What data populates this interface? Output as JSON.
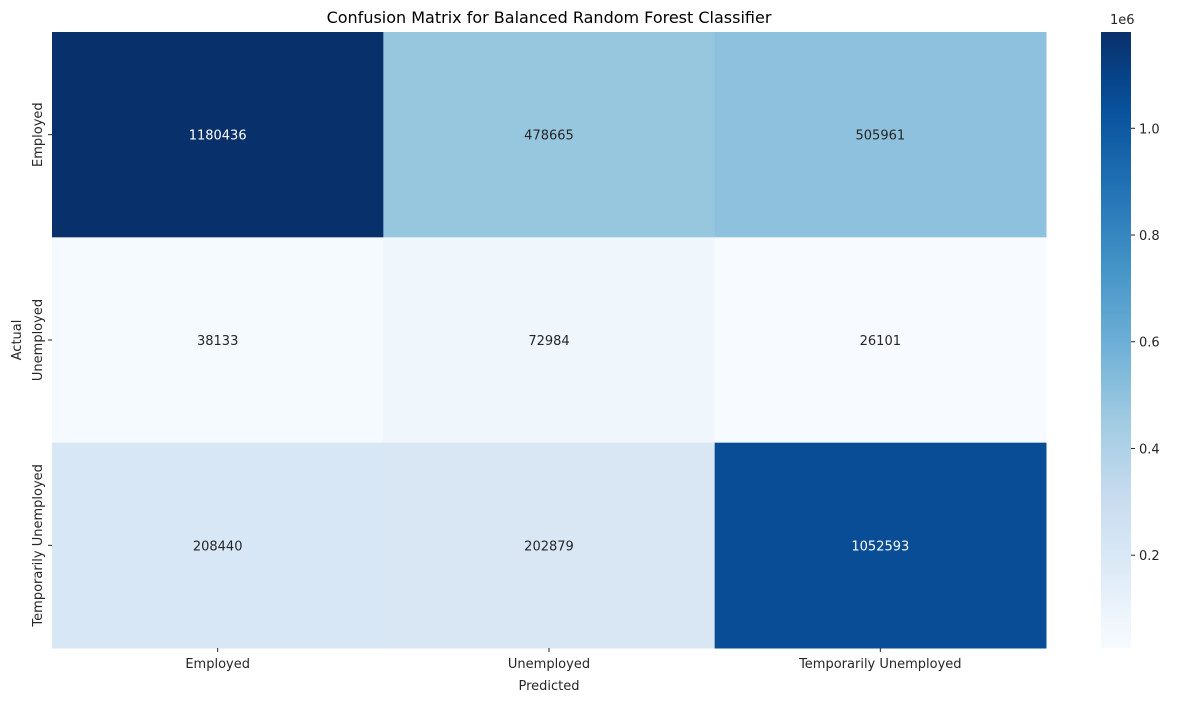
{
  "chart_data": {
    "type": "heatmap",
    "title": "Confusion Matrix for Balanced Random Forest Classifier",
    "xlabel": "Predicted",
    "ylabel": "Actual",
    "x_categories": [
      "Employed",
      "Unemployed",
      "Temporarily Unemployed"
    ],
    "y_categories": [
      "Employed",
      "Unemployed",
      "Temporarily Unemployed"
    ],
    "values": [
      [
        1180436,
        478665,
        505961
      ],
      [
        38133,
        72984,
        26101
      ],
      [
        208440,
        202879,
        1052593
      ]
    ],
    "colormap": "Blues",
    "colorbar": {
      "min": 26101,
      "max": 1180436,
      "ticks": [
        0.2,
        0.4,
        0.6,
        0.8,
        1.0
      ],
      "tick_labels": [
        "0.2",
        "0.4",
        "0.6",
        "0.8",
        "1.0"
      ],
      "offset_label": "1e6",
      "scale": 1000000
    }
  }
}
